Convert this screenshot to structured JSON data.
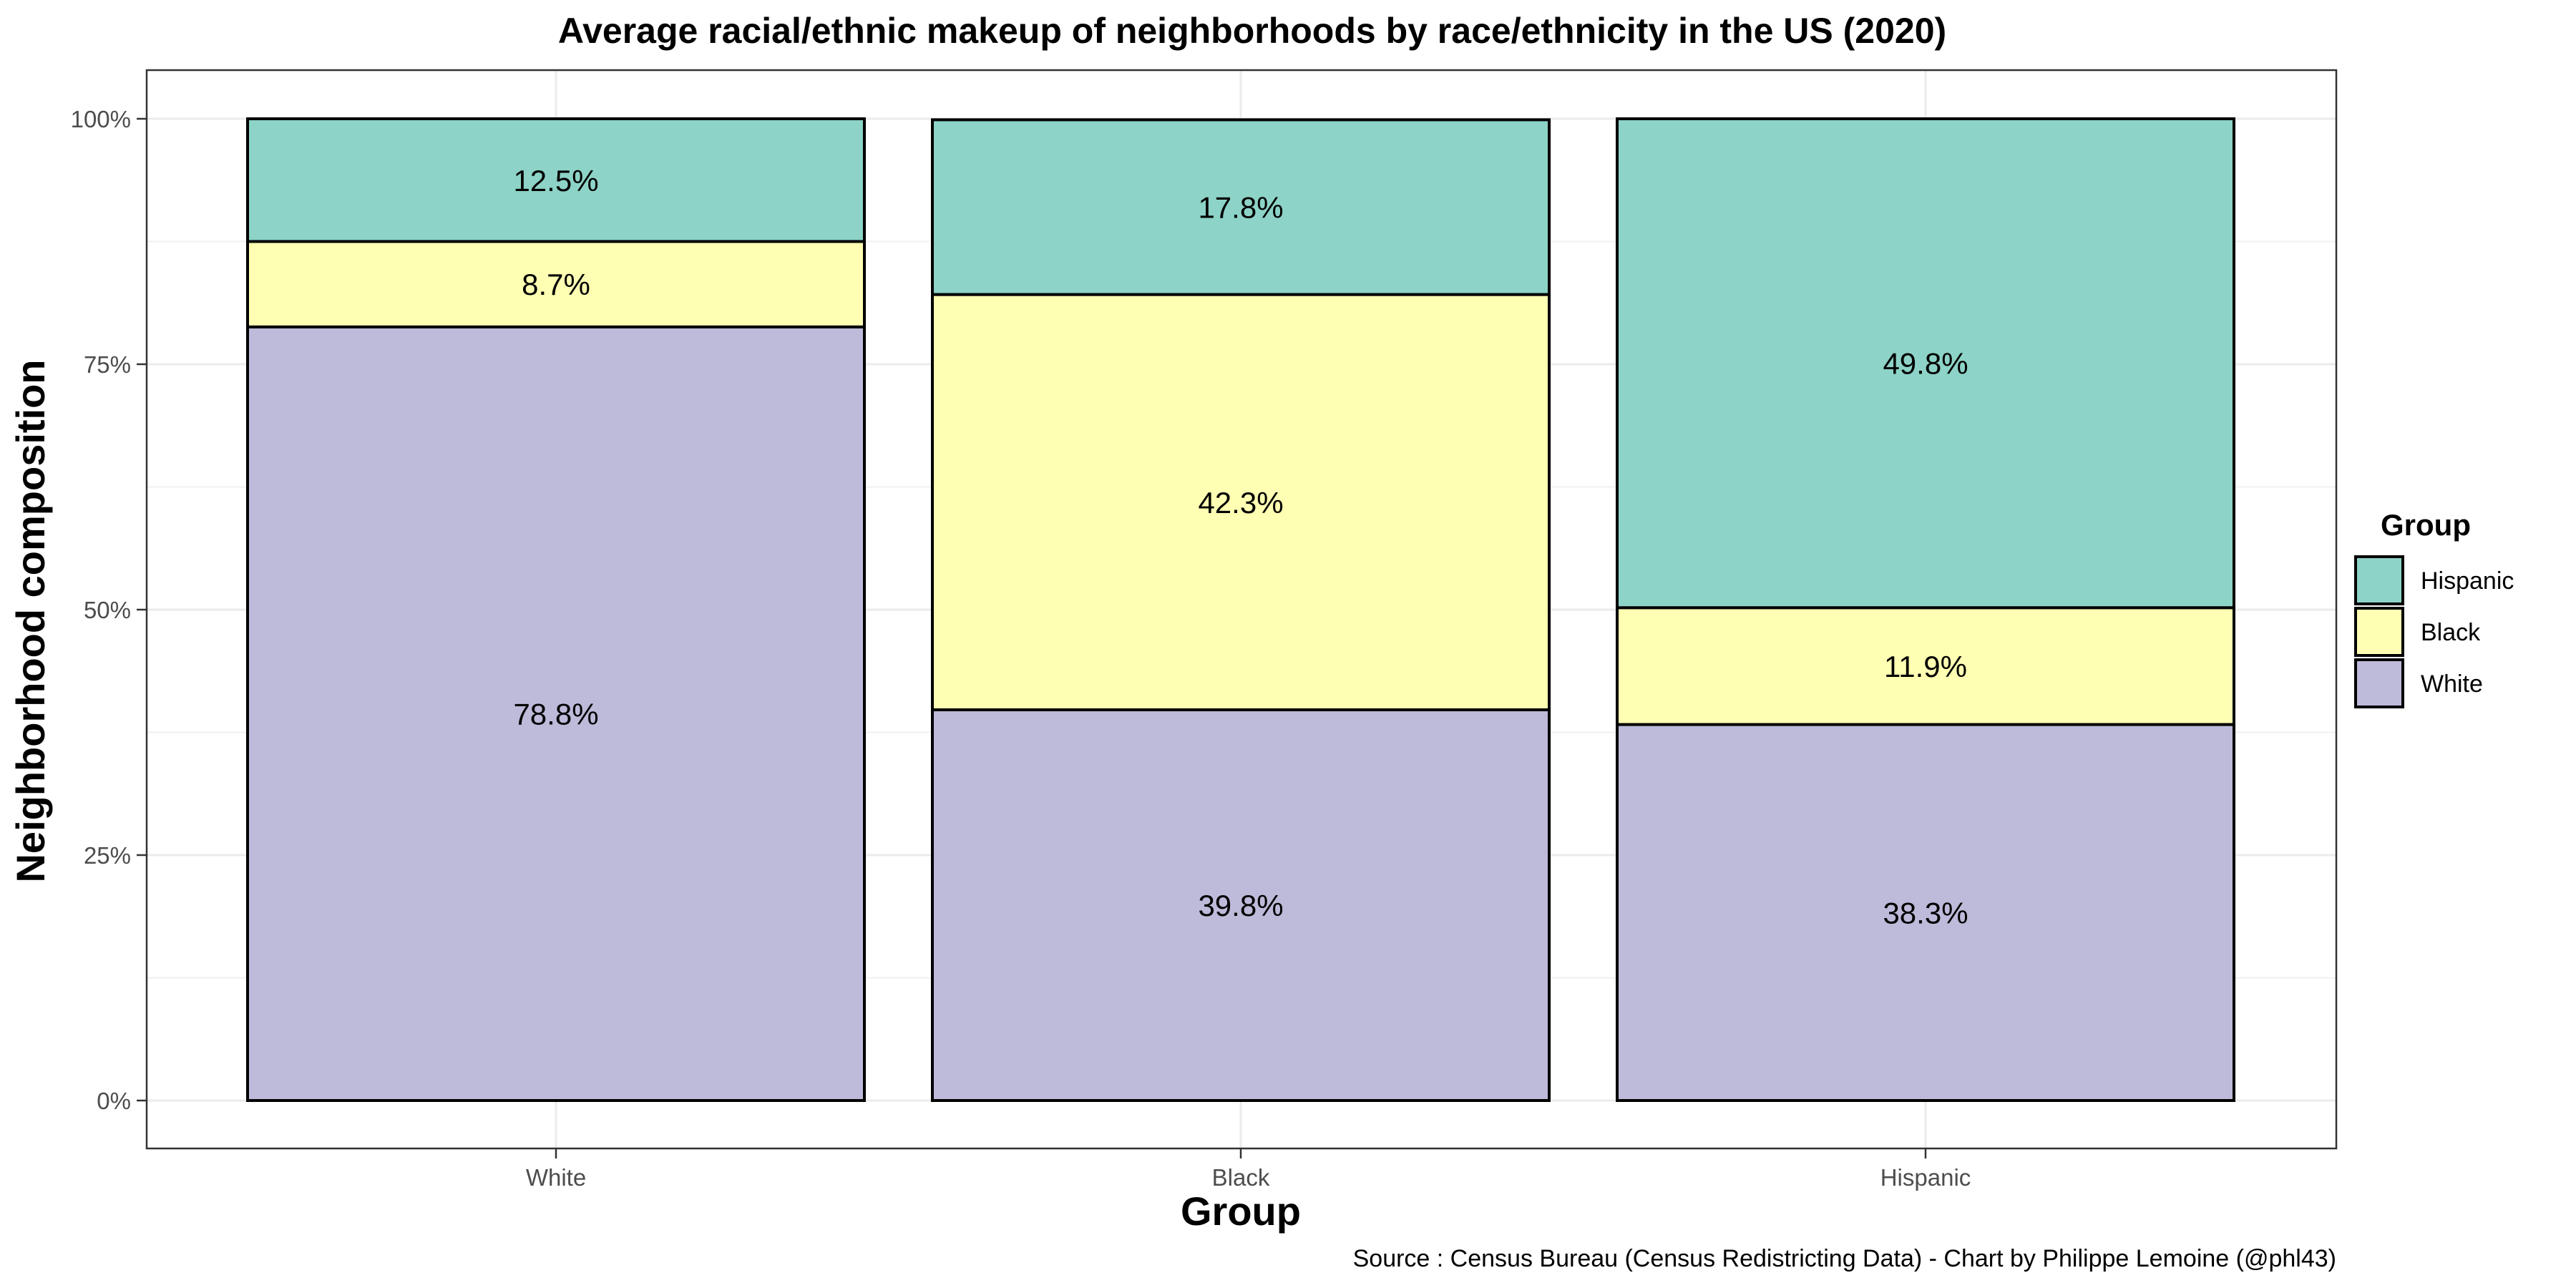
{
  "chart_data": {
    "type": "bar",
    "stacked": true,
    "title": "Average racial/ethnic makeup of neighborhoods by race/ethnicity in the US (2020)",
    "xlabel": "Group",
    "ylabel": "Neighborhood composition",
    "categories": [
      "White",
      "Black",
      "Hispanic"
    ],
    "ylim": [
      0,
      100
    ],
    "yticks": [
      0,
      25,
      50,
      75,
      100
    ],
    "ytick_labels": [
      "0%",
      "25%",
      "50%",
      "75%",
      "100%"
    ],
    "series": [
      {
        "name": "White",
        "color": "#bebada",
        "values": [
          78.8,
          39.8,
          38.3
        ],
        "labels": [
          "78.8%",
          "39.8%",
          "38.3%"
        ]
      },
      {
        "name": "Black",
        "color": "#ffffb3",
        "values": [
          8.7,
          42.3,
          11.9
        ],
        "labels": [
          "8.7%",
          "42.3%",
          "11.9%"
        ]
      },
      {
        "name": "Hispanic",
        "color": "#8dd3c7",
        "values": [
          12.5,
          17.8,
          49.8
        ],
        "labels": [
          "12.5%",
          "17.8%",
          "49.8%"
        ]
      }
    ],
    "legend": {
      "title": "Group",
      "position": "right",
      "entries": [
        "Hispanic",
        "Black",
        "White"
      ]
    },
    "grid": true,
    "caption": "Source : Census Bureau (Census Redistricting Data) - Chart by Philippe Lemoine (@phl43)"
  }
}
